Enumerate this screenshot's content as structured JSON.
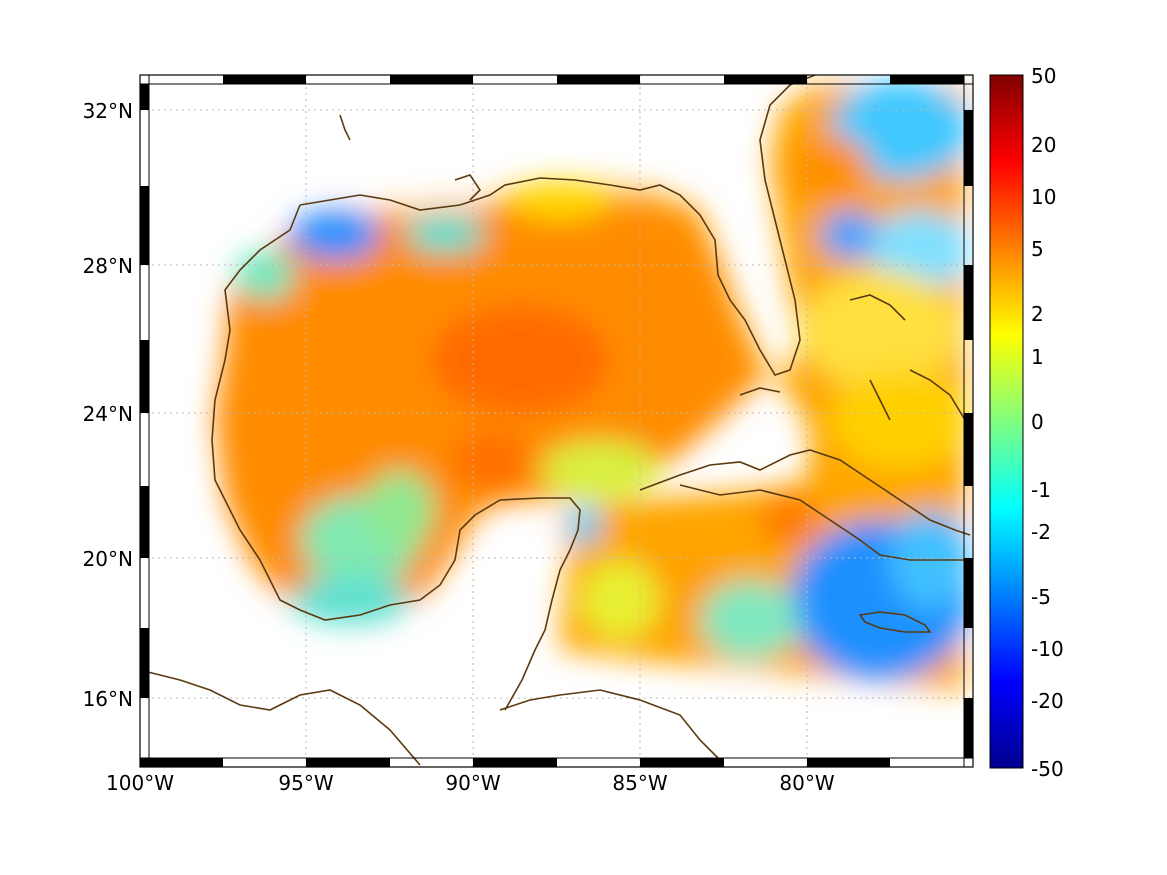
{
  "map": {
    "lat_ticks": [
      "32°N",
      "28°N",
      "24°N",
      "20°N",
      "16°N"
    ],
    "lon_ticks": [
      "100°W",
      "95°W",
      "90°W",
      "85°W",
      "80°W"
    ]
  },
  "colorbar": {
    "labels": [
      "50",
      "20",
      "10",
      "5",
      "2",
      "1",
      "0",
      "-1",
      "-2",
      "-5",
      "-10",
      "-20",
      "-50"
    ],
    "colormap": [
      "#00008f",
      "#0000ff",
      "#0080ff",
      "#00ffff",
      "#80ff80",
      "#ffff00",
      "#ff8000",
      "#ff0000",
      "#800000"
    ]
  },
  "chart_data": {
    "type": "heatmap",
    "region": "Gulf of Mexico and western Caribbean",
    "lon_range": [
      -100,
      -75
    ],
    "lat_range": [
      14.5,
      33
    ],
    "color_scale": [
      -50,
      -20,
      -10,
      -5,
      -2,
      -1,
      0,
      1,
      2,
      5,
      10,
      20,
      50
    ],
    "grid": true
  }
}
